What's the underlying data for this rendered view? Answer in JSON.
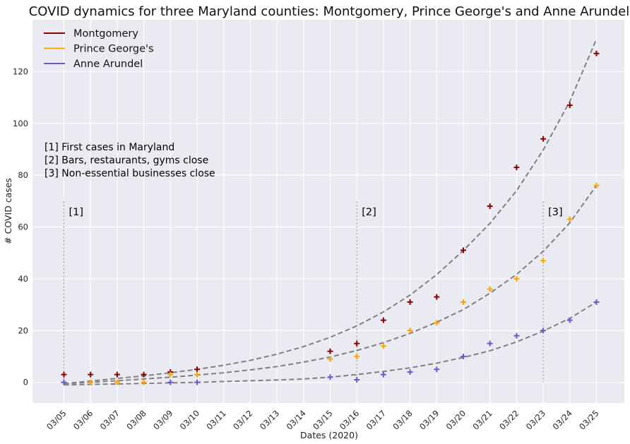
{
  "chart_data": {
    "type": "scatter",
    "title": "COVID dynamics for three Maryland counties: Montgomery, Prince George's and Anne Arundel",
    "xlabel": "Dates (2020)",
    "ylabel": "# COVID cases",
    "categories": [
      "03/05",
      "03/06",
      "03/07",
      "03/08",
      "03/09",
      "03/10",
      "03/11",
      "03/12",
      "03/13",
      "03/14",
      "03/15",
      "03/16",
      "03/17",
      "03/18",
      "03/19",
      "03/20",
      "03/21",
      "03/22",
      "03/23",
      "03/24",
      "03/25"
    ],
    "yticks": [
      0,
      20,
      40,
      60,
      80,
      100,
      120
    ],
    "ylim": [
      -8,
      140
    ],
    "grid": true,
    "legend_position": "top-left",
    "series": [
      {
        "name": "Montgomery",
        "color": "#8b0000",
        "marker": "plus",
        "points": [
          {
            "x": "03/05",
            "y": 3
          },
          {
            "x": "03/06",
            "y": 3
          },
          {
            "x": "03/07",
            "y": 3
          },
          {
            "x": "03/08",
            "y": 3
          },
          {
            "x": "03/09",
            "y": 4
          },
          {
            "x": "03/10",
            "y": 5
          },
          {
            "x": "03/15",
            "y": 12
          },
          {
            "x": "03/16",
            "y": 15
          },
          {
            "x": "03/17",
            "y": 24
          },
          {
            "x": "03/18",
            "y": 31
          },
          {
            "x": "03/19",
            "y": 33
          },
          {
            "x": "03/20",
            "y": 51
          },
          {
            "x": "03/21",
            "y": 68
          },
          {
            "x": "03/22",
            "y": 83
          },
          {
            "x": "03/23",
            "y": 94
          },
          {
            "x": "03/24",
            "y": 107
          },
          {
            "x": "03/25",
            "y": 127
          }
        ],
        "fit": [
          -0.5,
          0.5,
          1.5,
          2.5,
          3.7,
          5.0,
          6.6,
          8.5,
          10.9,
          13.8,
          17.4,
          21.8,
          27.2,
          33.7,
          41.6,
          50.9,
          61.4,
          74.0,
          89.7,
          108.5,
          132.5
        ]
      },
      {
        "name": "Prince George's",
        "color": "#ffa500",
        "marker": "plus",
        "points": [
          {
            "x": "03/05",
            "y": 0
          },
          {
            "x": "03/06",
            "y": 0
          },
          {
            "x": "03/07",
            "y": 0
          },
          {
            "x": "03/08",
            "y": 0
          },
          {
            "x": "03/09",
            "y": 3
          },
          {
            "x": "03/10",
            "y": 3
          },
          {
            "x": "03/15",
            "y": 9
          },
          {
            "x": "03/16",
            "y": 10
          },
          {
            "x": "03/17",
            "y": 14
          },
          {
            "x": "03/18",
            "y": 20
          },
          {
            "x": "03/19",
            "y": 23
          },
          {
            "x": "03/20",
            "y": 31
          },
          {
            "x": "03/21",
            "y": 36
          },
          {
            "x": "03/22",
            "y": 40
          },
          {
            "x": "03/23",
            "y": 47
          },
          {
            "x": "03/24",
            "y": 63
          },
          {
            "x": "03/25",
            "y": 76
          }
        ],
        "fit": [
          -0.5,
          0.0,
          0.6,
          1.3,
          2.0,
          2.8,
          3.7,
          4.8,
          6.1,
          7.8,
          9.8,
          12.3,
          15.3,
          18.9,
          23.2,
          28.1,
          34.4,
          41.7,
          50.6,
          61.6,
          76.0
        ]
      },
      {
        "name": "Anne Arundel",
        "color": "#6a5acd",
        "marker": "plus",
        "points": [
          {
            "x": "03/05",
            "y": 0
          },
          {
            "x": "03/09",
            "y": 0
          },
          {
            "x": "03/10",
            "y": 0
          },
          {
            "x": "03/15",
            "y": 2
          },
          {
            "x": "03/16",
            "y": 1
          },
          {
            "x": "03/17",
            "y": 3
          },
          {
            "x": "03/18",
            "y": 4
          },
          {
            "x": "03/19",
            "y": 5
          },
          {
            "x": "03/20",
            "y": 10
          },
          {
            "x": "03/21",
            "y": 15
          },
          {
            "x": "03/22",
            "y": 18
          },
          {
            "x": "03/23",
            "y": 20
          },
          {
            "x": "03/24",
            "y": 24
          },
          {
            "x": "03/25",
            "y": 31
          }
        ],
        "fit": [
          -1.0,
          -0.8,
          -0.6,
          -0.4,
          -0.2,
          0.0,
          0.3,
          0.6,
          0.9,
          1.3,
          2.0,
          3.0,
          4.2,
          5.6,
          7.4,
          9.6,
          12.2,
          15.6,
          19.8,
          24.7,
          31.0
        ]
      }
    ],
    "events": [
      {
        "label": "[1]",
        "x": "03/05",
        "y_top": 70,
        "description": "[1] First cases in Maryland"
      },
      {
        "label": "[2]",
        "x": "03/16",
        "y_top": 70,
        "description": "[2] Bars, restaurants, gyms close"
      },
      {
        "label": "[3]",
        "x": "03/23",
        "y_top": 70,
        "description": "[3] Non-essential businesses close"
      }
    ],
    "fit_line_color": "#808080"
  }
}
